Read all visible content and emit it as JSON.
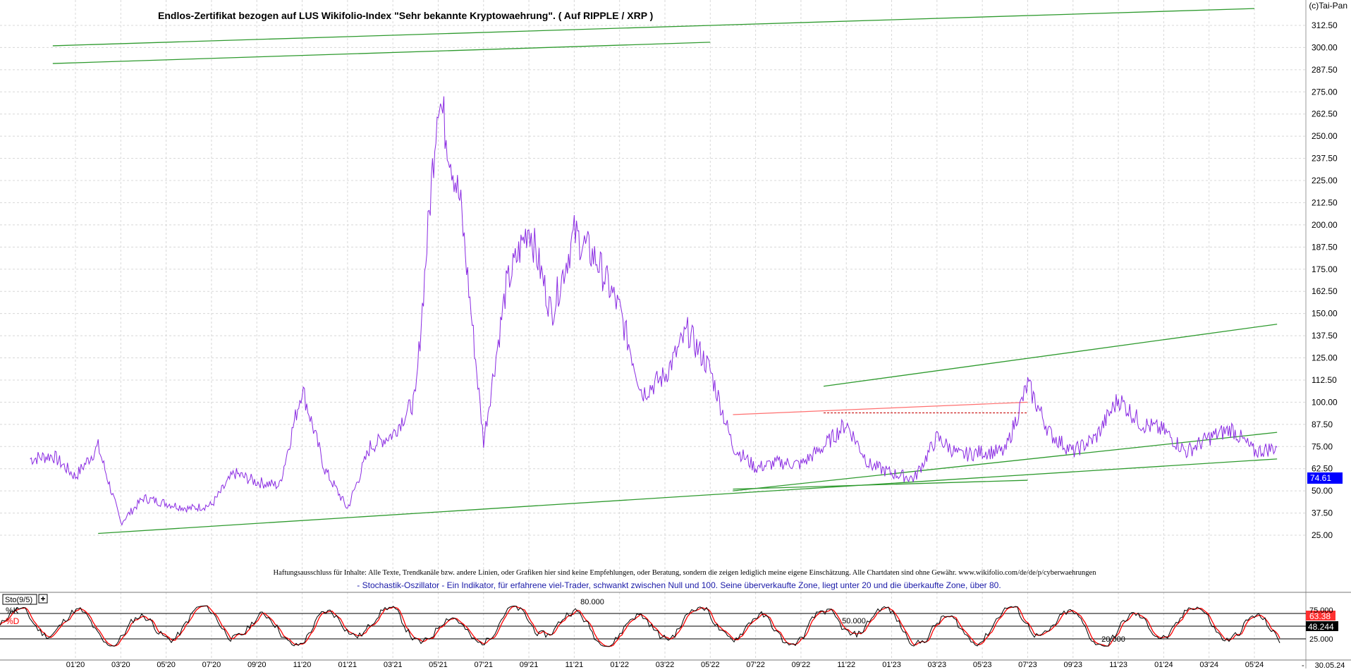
{
  "chart_data": [
    {
      "type": "line",
      "title": "Endlos-Zertifikat bezogen auf LUS Wikifolio-Index \"Sehr bekannte Kryptowaehrung\". ( Auf RIPPLE / XRP )",
      "copyright": "(c)Tai-Pan",
      "disclaimer": "Haftungsausschluss für Inhalte: Alle Texte, Trendkanäle bzw. andere Linien, oder Grafiken hier sind keine Empfehlungen, oder Beratung, sondern die zeigen lediglich meine eigene Einschätzung. Alle Chartdaten sind ohne Gewähr.  www.wikifolio.com/de/de/p/cyberwaehrungen",
      "ylim": [
        20,
        320
      ],
      "y_ticks": [
        "25.00",
        "37.50",
        "50.00",
        "62.50",
        "75.00",
        "87.50",
        "100.00",
        "112.50",
        "125.00",
        "137.50",
        "150.00",
        "162.50",
        "175.00",
        "187.50",
        "200.00",
        "212.50",
        "225.00",
        "237.50",
        "250.00",
        "262.50",
        "275.00",
        "287.50",
        "300.00",
        "312.50"
      ],
      "last_value_label": "74.61",
      "grid": true,
      "price_color": "#8a2be2",
      "trendline_color": "#2e9a2e",
      "resistance_color": "#ff7070",
      "series": [
        {
          "x": [
            "2019-11",
            "2019-12",
            "2020-01",
            "2020-02",
            "2020-03",
            "2020-04",
            "2020-05",
            "2020-06",
            "2020-07",
            "2020-08",
            "2020-09",
            "2020-10",
            "2020-11",
            "2020-12",
            "2021-01",
            "2021-02",
            "2021-03",
            "2021-04",
            "2021-05",
            "2021-06",
            "2021-07",
            "2021-08",
            "2021-09",
            "2021-10",
            "2021-11",
            "2021-12",
            "2022-01",
            "2022-02",
            "2022-03",
            "2022-04",
            "2022-05",
            "2022-06",
            "2022-07",
            "2022-08",
            "2022-09",
            "2022-10",
            "2022-11",
            "2022-12",
            "2023-01",
            "2023-02",
            "2023-03",
            "2023-04",
            "2023-05",
            "2023-06",
            "2023-07",
            "2023-08",
            "2023-09",
            "2023-10",
            "2023-11",
            "2023-12",
            "2024-01",
            "2024-02",
            "2024-03",
            "2024-04",
            "2024-05",
            "2024-06"
          ],
          "values": [
            68,
            70,
            58,
            75,
            32,
            46,
            43,
            40,
            42,
            60,
            55,
            53,
            108,
            62,
            40,
            75,
            82,
            102,
            275,
            210,
            78,
            165,
            200,
            150,
            195,
            180,
            152,
            105,
            115,
            140,
            118,
            75,
            63,
            66,
            65,
            75,
            88,
            65,
            60,
            57,
            80,
            70,
            72,
            72,
            110,
            82,
            72,
            80,
            102,
            88,
            84,
            72,
            80,
            85,
            72,
            74.6
          ]
        }
      ],
      "trendlines": [
        {
          "x": [
            "2019-12",
            "2022-05"
          ],
          "y": [
            291,
            303
          ]
        },
        {
          "x": [
            "2019-12",
            "2024-05"
          ],
          "y": [
            301,
            322
          ]
        },
        {
          "x": [
            "2020-02",
            "2024-06"
          ],
          "y": [
            26,
            68
          ]
        },
        {
          "x": [
            "2022-06",
            "2024-06"
          ],
          "y": [
            50,
            83
          ]
        },
        {
          "x": [
            "2022-10",
            "2024-06"
          ],
          "y": [
            109,
            144
          ]
        },
        {
          "x": [
            "2022-06",
            "2023-07"
          ],
          "y": [
            51,
            56
          ]
        }
      ],
      "resistance_lines": [
        {
          "x": [
            "2022-06",
            "2023-07"
          ],
          "y": [
            93,
            100
          ],
          "dashed": false
        },
        {
          "x": [
            "2022-10",
            "2023-07"
          ],
          "y": [
            94,
            94
          ],
          "dashed": true
        }
      ]
    },
    {
      "type": "line",
      "name": "Stochastik-Oszillator",
      "legend_label": "Sto(9/5)",
      "note": "- Stochastik-Oszillator - Ein Indikator, für erfahrene viel-Trader, schwankt zwischen Null und 100. Seine überverkaufte Zone, liegt unter 20 und die überkaufte Zone, über 80.",
      "ylim": [
        0,
        100
      ],
      "y_ticks": [
        "25.000",
        "75.000"
      ],
      "levels": [
        "80.000",
        "50.000",
        "20.000"
      ],
      "series": [
        {
          "name": "%K",
          "color": "#000000",
          "last_label": "48.244"
        },
        {
          "name": "%D",
          "color": "#ff0000",
          "last_label": "63.38"
        }
      ],
      "x_ticks": [
        "01'20",
        "03'20",
        "05'20",
        "07'20",
        "09'20",
        "11'20",
        "01'21",
        "03'21",
        "05'21",
        "07'21",
        "09'21",
        "11'21",
        "01'22",
        "03'22",
        "05'22",
        "07'22",
        "09'22",
        "11'22",
        "01'23",
        "03'23",
        "05'23",
        "07'23",
        "09'23",
        "11'23",
        "01'24",
        "03'24",
        "05'24"
      ],
      "last_date": "30.05.24"
    }
  ]
}
